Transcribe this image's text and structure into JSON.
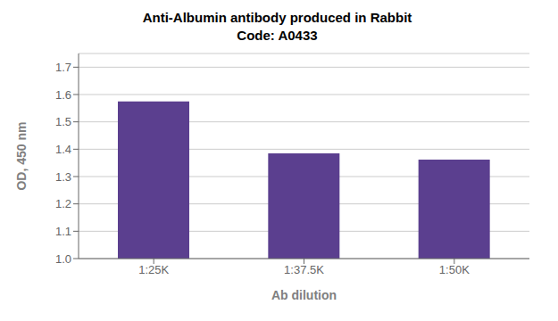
{
  "chart_data": {
    "type": "bar",
    "title": "Anti-Albumin antibody produced in Rabbit",
    "subtitle": "Code: A0433",
    "categories": [
      "1:25K",
      "1:37.5K",
      "1:50K"
    ],
    "values": [
      1.575,
      1.385,
      1.362
    ],
    "color": "#5b3f8f",
    "xlabel": "Ab dilution",
    "ylabel": "OD, 450 nm",
    "ylim": [
      1.0,
      1.75
    ],
    "yticks": [
      {
        "value": 1.0,
        "label": "1.0"
      },
      1.1,
      1.2,
      1.3,
      1.4,
      1.5,
      1.6,
      1.7
    ],
    "grid": true
  }
}
